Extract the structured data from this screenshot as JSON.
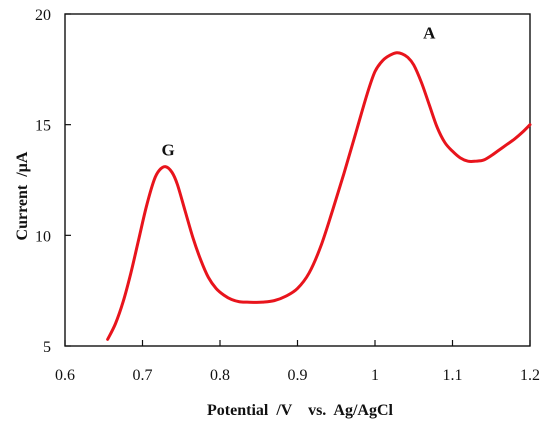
{
  "chart_data": {
    "type": "line",
    "title": "",
    "xlabel": "Potential  /V    vs.  Ag/AgCl",
    "ylabel": "Current  /µA",
    "xlim": [
      0.6,
      1.2
    ],
    "ylim": [
      5,
      20
    ],
    "xticks": [
      0.6,
      0.7,
      0.8,
      0.9,
      1.0,
      1.1,
      1.2
    ],
    "xtick_labels": [
      "0.6",
      "0.7",
      "0.8",
      "0.9",
      "1",
      "1.1",
      "1.2"
    ],
    "yticks": [
      5,
      10,
      15,
      20
    ],
    "ytick_labels": [
      "5",
      "10",
      "15",
      "20"
    ],
    "grid": false,
    "legend": null,
    "line_color": "#e8141c",
    "series": [
      {
        "x": [
          0.655,
          0.665,
          0.675,
          0.685,
          0.695,
          0.705,
          0.715,
          0.722,
          0.73,
          0.738,
          0.745,
          0.755,
          0.765,
          0.775,
          0.785,
          0.795,
          0.805,
          0.815,
          0.825,
          0.835,
          0.845,
          0.855,
          0.87,
          0.885,
          0.9,
          0.915,
          0.93,
          0.945,
          0.96,
          0.975,
          0.99,
          1.0,
          1.01,
          1.02,
          1.028,
          1.035,
          1.042,
          1.05,
          1.06,
          1.07,
          1.08,
          1.09,
          1.1,
          1.11,
          1.12,
          1.13,
          1.14,
          1.15,
          1.16,
          1.17,
          1.18,
          1.19,
          1.2
        ],
        "y": [
          5.3,
          6.0,
          7.0,
          8.3,
          9.8,
          11.3,
          12.5,
          12.95,
          13.1,
          12.85,
          12.3,
          11.1,
          9.9,
          8.9,
          8.1,
          7.6,
          7.3,
          7.1,
          7.0,
          6.98,
          6.97,
          6.98,
          7.05,
          7.25,
          7.6,
          8.3,
          9.5,
          11.1,
          12.8,
          14.6,
          16.4,
          17.4,
          17.9,
          18.15,
          18.25,
          18.2,
          18.05,
          17.7,
          16.9,
          15.9,
          14.9,
          14.2,
          13.8,
          13.5,
          13.35,
          13.35,
          13.4,
          13.6,
          13.85,
          14.1,
          14.35,
          14.65,
          15.0
        ]
      }
    ],
    "annotations": [
      {
        "text": "G",
        "x": 0.733,
        "y": 13.6
      },
      {
        "text": "A",
        "x": 1.07,
        "y": 18.9
      }
    ]
  }
}
